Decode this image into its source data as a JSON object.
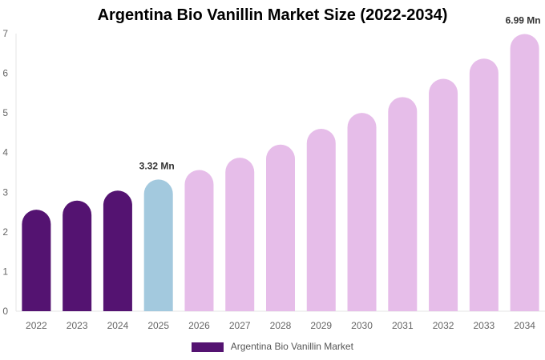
{
  "chart_data": {
    "type": "bar",
    "title": "Argentina Bio Vanillin Market Size (2022-2034)",
    "xlabel": "",
    "ylabel": "",
    "categories": [
      "2022",
      "2023",
      "2024",
      "2025",
      "2026",
      "2027",
      "2028",
      "2029",
      "2030",
      "2031",
      "2032",
      "2033",
      "2034"
    ],
    "series": [
      {
        "name": "Argentina Bio Vanillin Market",
        "values": [
          2.56,
          2.79,
          3.04,
          3.32,
          3.56,
          3.87,
          4.2,
          4.6,
          5.0,
          5.4,
          5.86,
          6.37,
          6.99
        ]
      }
    ],
    "ylim": [
      0,
      7
    ],
    "yticks": [
      "0",
      "1",
      "2",
      "3",
      "4",
      "5",
      "6",
      "7"
    ],
    "data_labels": [
      {
        "index": 3,
        "text": "3.32 Mn"
      },
      {
        "index": 12,
        "text": "6.99 Mn"
      }
    ],
    "colors": {
      "historical": "#541371",
      "current": "#a3c9de",
      "forecast": "#e6bde9",
      "legend_swatch": "#541371"
    },
    "grid": false,
    "legend_position": "bottom"
  }
}
